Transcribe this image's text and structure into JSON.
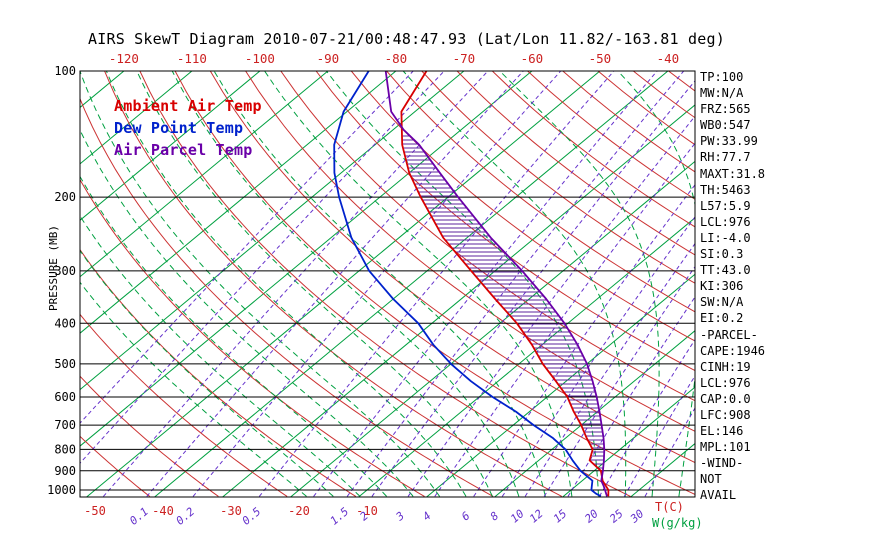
{
  "title": "AIRS SkewT Diagram 2010-07-21/00:48:47.93 (Lat/Lon 11.82/-163.81 deg)",
  "colors": {
    "isotherm_green": "#00a040",
    "dry_adiabat_red": "#cc3333",
    "moist_adiabat_green": "#00a040",
    "mixing_ratio_purple": "#6633cc",
    "ambient_temp": "#d80000",
    "dew_point": "#0022cc",
    "air_parcel": "#6a00a8",
    "cape_hatch": "#5e239d",
    "axis_text_red": "#cc2222",
    "axis_text_black": "#000000",
    "w_label_green": "#00a040"
  },
  "legend": {
    "items": [
      {
        "label": "Ambient Air Temp",
        "color": "#d80000"
      },
      {
        "label": "Dew Point Temp",
        "color": "#0022cc"
      },
      {
        "label": "Air Parcel Temp",
        "color": "#6a00a8"
      }
    ]
  },
  "axes": {
    "pressure_axis_label": "PRESSURE (MB)",
    "pressure_levels": [
      100,
      200,
      300,
      400,
      500,
      600,
      700,
      800,
      900,
      1000
    ],
    "top_temp_labels": [
      -120,
      -110,
      -100,
      -90,
      -80,
      -70,
      -60,
      -50,
      -40
    ],
    "bottom_temp_labels": [
      -50,
      -40,
      -30,
      -20,
      -10
    ],
    "temp_unit_label": "T(C)",
    "mixing_unit_label": "W(g/kg)",
    "mixing_ratio_labels": [
      "0.1",
      "0.2",
      "0.5",
      "1.5",
      "2",
      "3",
      "4",
      "6",
      "8",
      "10",
      "12",
      "15",
      "20",
      "25",
      "30"
    ]
  },
  "stats_panel": [
    "TP:100",
    "MW:N/A",
    "FRZ:565",
    "WB0:547",
    "PW:33.99",
    "RH:77.7",
    "MAXT:31.8",
    "TH:5463",
    "L57:5.9",
    "LCL:976",
    "LI:-4.0",
    "SI:0.3",
    "TT:43.0",
    "KI:306",
    "SW:N/A",
    "EI:0.2",
    "-PARCEL-",
    "CAPE:1946",
    "CINH:19",
    "LCL:976",
    "CAP:0.0",
    "LFC:908",
    "EL:146",
    "MPL:101",
    "-WIND-",
    "NOT",
    "AVAIL"
  ],
  "chart_data": {
    "type": "line",
    "title": "AIRS SkewT Diagram 2010-07-21/00:48:47.93 (Lat/Lon 11.82/-163.81 deg)",
    "xlabel": "Temperature (C)",
    "ylabel": "PRESSURE (MB)",
    "y_scale": "log",
    "ylim": [
      1040,
      100
    ],
    "skew": "isotherms slope up-right",
    "isotherms": {
      "min": -130,
      "max": 40,
      "step": 10,
      "unit": "C"
    },
    "dry_adiabats_K": {
      "min": 230,
      "max": 450,
      "step": 10
    },
    "moist_adiabats_C": {
      "min": -20,
      "max": 48,
      "step": 4
    },
    "mixing_ratio_lines": [
      0.01,
      0.02,
      0.05,
      0.1,
      0.2,
      0.5,
      1,
      1.5,
      2,
      3,
      4,
      6,
      8,
      10,
      12,
      15,
      20,
      25,
      30
    ],
    "series": [
      {
        "name": "Ambient Air Temp",
        "color": "#d80000",
        "points": [
          [
            1035,
            26.6
          ],
          [
            1000,
            25.5
          ],
          [
            950,
            23.0
          ],
          [
            900,
            21.0
          ],
          [
            850,
            17.5
          ],
          [
            800,
            16.0
          ],
          [
            750,
            13.0
          ],
          [
            700,
            10.0
          ],
          [
            650,
            6.5
          ],
          [
            600,
            3.0
          ],
          [
            550,
            -1.5
          ],
          [
            500,
            -6.5
          ],
          [
            450,
            -11.5
          ],
          [
            400,
            -17.5
          ],
          [
            350,
            -25.0
          ],
          [
            300,
            -33.5
          ],
          [
            250,
            -43.5
          ],
          [
            200,
            -54.0
          ],
          [
            175,
            -60.0
          ],
          [
            150,
            -66.0
          ],
          [
            125,
            -72.0
          ],
          [
            100,
            -75.5
          ]
        ]
      },
      {
        "name": "Dew Point Temp",
        "color": "#0022cc",
        "points": [
          [
            1035,
            25.5
          ],
          [
            1020,
            24.3
          ],
          [
            1000,
            23.0
          ],
          [
            950,
            21.5
          ],
          [
            900,
            18.0
          ],
          [
            850,
            15.0
          ],
          [
            800,
            12.0
          ],
          [
            750,
            8.0
          ],
          [
            700,
            3.0
          ],
          [
            650,
            -2.0
          ],
          [
            600,
            -8.0
          ],
          [
            550,
            -14.0
          ],
          [
            500,
            -20.0
          ],
          [
            450,
            -26.0
          ],
          [
            400,
            -32.0
          ],
          [
            350,
            -40.0
          ],
          [
            300,
            -48.5
          ],
          [
            250,
            -57.0
          ],
          [
            200,
            -66.0
          ],
          [
            175,
            -71.0
          ],
          [
            150,
            -76.0
          ],
          [
            125,
            -80.5
          ],
          [
            100,
            -84.0
          ]
        ]
      },
      {
        "name": "Air Parcel Temp",
        "color": "#6a00a8",
        "points": [
          [
            1035,
            26.4
          ],
          [
            1000,
            25.0
          ],
          [
            976,
            24.0
          ],
          [
            950,
            22.8
          ],
          [
            900,
            21.3
          ],
          [
            850,
            19.6
          ],
          [
            800,
            17.7
          ],
          [
            750,
            15.5
          ],
          [
            700,
            13.0
          ],
          [
            650,
            10.3
          ],
          [
            600,
            7.3
          ],
          [
            550,
            3.9
          ],
          [
            500,
            0.0
          ],
          [
            450,
            -4.8
          ],
          [
            400,
            -10.5
          ],
          [
            350,
            -17.5
          ],
          [
            300,
            -26.0
          ],
          [
            250,
            -36.5
          ],
          [
            200,
            -48.5
          ],
          [
            175,
            -55.5
          ],
          [
            150,
            -63.5
          ],
          [
            138,
            -68.5
          ],
          [
            125,
            -73.5
          ],
          [
            100,
            -81.5
          ]
        ]
      }
    ],
    "cape_hatch": {
      "between": [
        "Ambient Air Temp",
        "Air Parcel Temp"
      ],
      "from_pressure": 908,
      "to_pressure": 140
    }
  }
}
